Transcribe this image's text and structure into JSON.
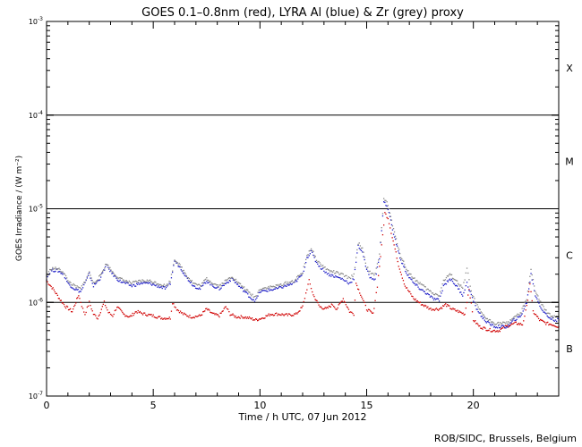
{
  "chart_data": {
    "type": "scatter",
    "title": "GOES 0.1–0.8nm (red), LYRA Al (blue) & Zr (grey) proxy",
    "xlabel": "Time / h UTC, 07 Jun 2012",
    "ylabel": "GOES Irradiance / (W m⁻²)",
    "xlim": [
      0,
      24
    ],
    "ylim": [
      1e-07,
      0.001
    ],
    "yscale": "log",
    "x_ticks": [
      0,
      5,
      10,
      15,
      20
    ],
    "y_ticks": [
      {
        "value": 1e-07,
        "base": "10",
        "exp": "-7"
      },
      {
        "value": 1e-06,
        "base": "10",
        "exp": "-6"
      },
      {
        "value": 1e-05,
        "base": "10",
        "exp": "-5"
      },
      {
        "value": 0.0001,
        "base": "10",
        "exp": "-4"
      },
      {
        "value": 0.001,
        "base": "10",
        "exp": "-3"
      }
    ],
    "flare_class_lines": [
      1e-06,
      1e-05,
      0.0001
    ],
    "flare_classes": [
      {
        "label": "X",
        "value": 0.00032
      },
      {
        "label": "M",
        "value": 3.2e-05
      },
      {
        "label": "C",
        "value": 3.2e-06
      },
      {
        "label": "B",
        "value": 3.2e-07
      }
    ],
    "credit": "ROB/SIDC, Brussels, Belgium",
    "series": [
      {
        "color": "#d00000",
        "x": [
          0,
          0.3,
          0.6,
          0.9,
          1.2,
          1.5,
          1.7,
          1.8,
          2.0,
          2.2,
          2.4,
          2.7,
          2.9,
          3.1,
          3.3,
          3.6,
          3.9,
          4.2,
          4.6,
          5.0,
          5.4,
          5.8,
          5.9,
          6.1,
          6.4,
          6.8,
          7.2,
          7.5,
          7.8,
          8.1,
          8.4,
          8.6,
          8.9,
          9.2,
          9.5,
          9.8,
          10.1,
          10.5,
          10.9,
          11.3,
          11.7,
          12.0,
          12.2,
          12.3,
          12.5,
          12.8,
          13.1,
          13.4,
          13.6,
          13.9,
          14.2,
          14.4,
          14.5,
          14.8,
          15.0,
          15.3,
          15.5,
          15.7,
          15.85,
          16.0,
          16.2,
          16.5,
          16.8,
          17.2,
          17.6,
          18.0,
          18.4,
          18.7,
          19.0,
          19.3,
          19.6,
          19.8,
          20.0,
          20.3,
          20.6,
          20.9,
          21.2,
          21.5,
          21.8,
          22.0,
          22.3,
          22.5,
          22.65,
          22.8,
          23.1,
          23.4,
          23.7,
          24.0
        ],
        "values": [
          1.7e-06,
          1.4e-06,
          1.1e-06,
          9e-07,
          8e-07,
          1.2e-06,
          8.5e-07,
          7.5e-07,
          1e-06,
          7.5e-07,
          6.8e-07,
          1e-06,
          7.8e-07,
          7.2e-07,
          9e-07,
          7.5e-07,
          7e-07,
          8e-07,
          7.5e-07,
          7.2e-07,
          6.8e-07,
          6.8e-07,
          1e-06,
          8.5e-07,
          7.5e-07,
          7e-07,
          7.2e-07,
          8.5e-07,
          7.5e-07,
          7.2e-07,
          9e-07,
          7.5e-07,
          7e-07,
          7e-07,
          6.8e-07,
          6.5e-07,
          6.8e-07,
          7.5e-07,
          7.5e-07,
          7.3e-07,
          7.5e-07,
          9e-07,
          1.4e-06,
          1.7e-06,
          1.2e-06,
          9e-07,
          8.5e-07,
          9.5e-07,
          8.5e-07,
          1.1e-06,
          8e-07,
          7.5e-07,
          1.6e-06,
          1.1e-06,
          8.5e-07,
          7.5e-07,
          1.5e-06,
          4e-06,
          9e-06,
          8e-06,
          5e-06,
          2.5e-06,
          1.5e-06,
          1.1e-06,
          9.5e-07,
          8.5e-07,
          8.5e-07,
          9.5e-07,
          8.5e-07,
          8e-07,
          7.5e-07,
          1.4e-06,
          6.5e-07,
          5.5e-07,
          5.2e-07,
          5e-07,
          5e-07,
          5.5e-07,
          5.8e-07,
          6e-07,
          5.8e-07,
          9e-07,
          1.6e-06,
          8e-07,
          6.5e-07,
          6e-07,
          5.8e-07,
          5.5e-07
        ]
      },
      {
        "color": "#2020c8",
        "x": [
          0,
          0.2,
          0.5,
          0.8,
          1.0,
          1.3,
          1.6,
          1.8,
          2.0,
          2.2,
          2.5,
          2.8,
          3.1,
          3.4,
          3.7,
          4.0,
          4.4,
          4.8,
          5.2,
          5.6,
          5.8,
          6.0,
          6.3,
          6.6,
          6.9,
          7.2,
          7.5,
          7.8,
          8.1,
          8.4,
          8.7,
          9.0,
          9.3,
          9.6,
          9.8,
          10.0,
          10.4,
          10.8,
          11.2,
          11.6,
          12.0,
          12.2,
          12.4,
          12.6,
          12.8,
          13.0,
          13.2,
          13.5,
          13.8,
          14.0,
          14.2,
          14.4,
          14.6,
          14.8,
          15.0,
          15.2,
          15.4,
          15.6,
          15.8,
          16.0,
          16.3,
          16.6,
          16.9,
          17.2,
          17.5,
          17.8,
          18.1,
          18.4,
          18.6,
          18.9,
          19.2,
          19.5,
          19.7,
          19.9,
          20.1,
          20.4,
          20.7,
          21.0,
          21.3,
          21.6,
          21.9,
          22.2,
          22.5,
          22.7,
          22.9,
          23.2,
          23.5,
          23.8,
          24.0
        ],
        "values": [
          1.8e-06,
          2.2e-06,
          2.2e-06,
          2e-06,
          1.6e-06,
          1.4e-06,
          1.3e-06,
          1.6e-06,
          2e-06,
          1.5e-06,
          1.8e-06,
          2.5e-06,
          2e-06,
          1.7e-06,
          1.6e-06,
          1.5e-06,
          1.6e-06,
          1.6e-06,
          1.5e-06,
          1.4e-06,
          1.6e-06,
          2.8e-06,
          2.3e-06,
          1.8e-06,
          1.5e-06,
          1.4e-06,
          1.7e-06,
          1.5e-06,
          1.4e-06,
          1.6e-06,
          1.8e-06,
          1.5e-06,
          1.3e-06,
          1.1e-06,
          1.05e-06,
          1.3e-06,
          1.35e-06,
          1.4e-06,
          1.5e-06,
          1.6e-06,
          2e-06,
          3e-06,
          3.5e-06,
          2.8e-06,
          2.4e-06,
          2.2e-06,
          2e-06,
          1.9e-06,
          1.8e-06,
          1.7e-06,
          1.6e-06,
          1.8e-06,
          4e-06,
          3.5e-06,
          2.2e-06,
          1.8e-06,
          1.8e-06,
          3e-06,
          1.2e-05,
          1e-05,
          5e-06,
          2.8e-06,
          2e-06,
          1.6e-06,
          1.4e-06,
          1.25e-06,
          1.1e-06,
          1.05e-06,
          1.5e-06,
          1.8e-06,
          1.5e-06,
          1.2e-06,
          1.6e-06,
          1.2e-06,
          9e-07,
          7e-07,
          6e-07,
          5.5e-07,
          5.5e-07,
          5.5e-07,
          6.5e-07,
          7e-07,
          1e-06,
          2e-06,
          1.2e-06,
          8.5e-07,
          7e-07,
          6.5e-07,
          6.5e-07
        ]
      },
      {
        "color": "#888888",
        "x": [
          0,
          0.2,
          0.5,
          0.8,
          1.0,
          1.3,
          1.6,
          1.8,
          2.0,
          2.2,
          2.5,
          2.8,
          3.1,
          3.4,
          3.7,
          4.0,
          4.4,
          4.8,
          5.2,
          5.6,
          5.8,
          6.0,
          6.3,
          6.6,
          6.9,
          7.2,
          7.5,
          7.8,
          8.1,
          8.4,
          8.7,
          9.0,
          9.3,
          9.6,
          9.8,
          10.0,
          10.4,
          10.8,
          11.2,
          11.6,
          12.0,
          12.2,
          12.4,
          12.6,
          12.8,
          13.0,
          13.2,
          13.5,
          13.8,
          14.0,
          14.2,
          14.4,
          14.6,
          14.8,
          15.0,
          15.2,
          15.4,
          15.6,
          15.8,
          16.0,
          16.3,
          16.6,
          16.9,
          17.2,
          17.5,
          17.8,
          18.1,
          18.4,
          18.6,
          18.9,
          19.2,
          19.5,
          19.7,
          19.9,
          20.1,
          20.4,
          20.7,
          21.0,
          21.3,
          21.6,
          21.9,
          22.2,
          22.5,
          22.7,
          22.9,
          23.2,
          23.5,
          23.8,
          24.0
        ],
        "values": [
          1.9e-06,
          2.3e-06,
          2.3e-06,
          2.1e-06,
          1.7e-06,
          1.5e-06,
          1.4e-06,
          1.7e-06,
          2.1e-06,
          1.6e-06,
          1.9e-06,
          2.6e-06,
          2.1e-06,
          1.8e-06,
          1.7e-06,
          1.6e-06,
          1.7e-06,
          1.7e-06,
          1.6e-06,
          1.5e-06,
          1.7e-06,
          2.9e-06,
          2.4e-06,
          1.9e-06,
          1.6e-06,
          1.5e-06,
          1.8e-06,
          1.6e-06,
          1.5e-06,
          1.7e-06,
          1.9e-06,
          1.6e-06,
          1.4e-06,
          1.2e-06,
          1.15e-06,
          1.4e-06,
          1.45e-06,
          1.5e-06,
          1.6e-06,
          1.7e-06,
          2.1e-06,
          3.2e-06,
          3.8e-06,
          3e-06,
          2.6e-06,
          2.4e-06,
          2.2e-06,
          2.1e-06,
          2e-06,
          1.9e-06,
          1.8e-06,
          2e-06,
          4.3e-06,
          3.8e-06,
          2.4e-06,
          2e-06,
          2e-06,
          3.2e-06,
          1.3e-05,
          1.1e-05,
          5.5e-06,
          3.1e-06,
          2.2e-06,
          1.8e-06,
          1.6e-06,
          1.4e-06,
          1.25e-06,
          1.2e-06,
          1.7e-06,
          2e-06,
          1.7e-06,
          1.4e-06,
          2.3e-06,
          1.3e-06,
          1e-06,
          7.5e-07,
          6.5e-07,
          6e-07,
          6e-07,
          6e-07,
          7e-07,
          7.5e-07,
          1.1e-06,
          2.3e-06,
          1.3e-06,
          9.5e-07,
          7.5e-07,
          7e-07,
          7e-07
        ]
      }
    ]
  }
}
